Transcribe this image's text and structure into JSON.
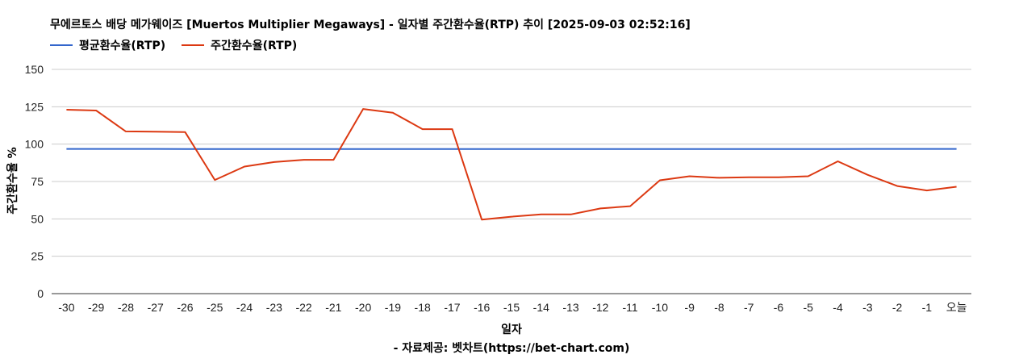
{
  "chart_data": {
    "type": "line",
    "title": "무에르토스 배당  메가웨이즈 [Muertos Multiplier Megaways] - 일자별 주간환수율(RTP) 추이 [2025-09-03 02:52:16]",
    "xlabel": "일자",
    "ylabel": "주간환수율 %",
    "credit": "- 자료제공: 벳차트(https://bet-chart.com)",
    "ylim": [
      0,
      150
    ],
    "yticks": [
      0,
      25,
      50,
      75,
      100,
      125,
      150
    ],
    "grid": true,
    "legend_position": "top-left",
    "categories": [
      "-30",
      "-29",
      "-28",
      "-27",
      "-26",
      "-25",
      "-24",
      "-23",
      "-22",
      "-21",
      "-20",
      "-19",
      "-18",
      "-17",
      "-16",
      "-15",
      "-14",
      "-13",
      "-12",
      "-11",
      "-10",
      "-9",
      "-8",
      "-7",
      "-6",
      "-5",
      "-4",
      "-3",
      "-2",
      "-1",
      "오늘"
    ],
    "series": [
      {
        "name": "평균환수율(RTP)",
        "color": "#3366cc",
        "values": [
          96.8,
          96.8,
          96.8,
          96.8,
          96.7,
          96.7,
          96.7,
          96.7,
          96.7,
          96.7,
          96.7,
          96.7,
          96.7,
          96.7,
          96.7,
          96.7,
          96.7,
          96.7,
          96.7,
          96.7,
          96.7,
          96.7,
          96.7,
          96.7,
          96.7,
          96.7,
          96.7,
          96.8,
          96.8,
          96.8,
          96.8
        ]
      },
      {
        "name": "주간환수율(RTP)",
        "color": "#dc3912",
        "values": [
          123,
          122.5,
          108.5,
          108.3,
          108,
          76,
          85,
          88,
          89.5,
          89.5,
          123.5,
          121,
          110,
          110,
          49.5,
          51.5,
          53,
          53,
          57,
          58.5,
          75.8,
          78.5,
          77.5,
          77.8,
          77.8,
          78.5,
          88.5,
          79.5,
          72,
          69,
          71.5
        ]
      }
    ]
  }
}
